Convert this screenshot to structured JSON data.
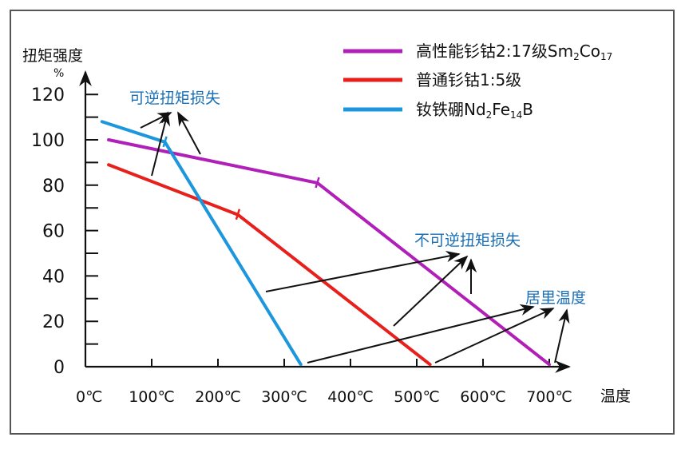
{
  "chart_data": {
    "type": "line",
    "ylabel": "扭矩强度",
    "yunit": "%",
    "xlabel": "温度",
    "ylim": [
      0,
      120
    ],
    "xlim": [
      0,
      700
    ],
    "yticks": [
      "0",
      "20",
      "40",
      "60",
      "80",
      "100",
      "120"
    ],
    "xticks": [
      "0℃",
      "100℃",
      "200℃",
      "300℃",
      "400℃",
      "500℃",
      "600℃",
      "700℃"
    ],
    "series": [
      {
        "name": "高性能钐钴2:17级Sm2Co17",
        "color": "#b01fb8",
        "points": [
          [
            35,
            100
          ],
          [
            350,
            81
          ],
          [
            700,
            1
          ]
        ]
      },
      {
        "name": "普通钐钴1:5级",
        "color": "#e8201c",
        "points": [
          [
            35,
            89
          ],
          [
            230,
            67
          ],
          [
            520,
            1
          ]
        ]
      },
      {
        "name": "钕铁硼Nd2Fe14B",
        "color": "#1c96dc",
        "points": [
          [
            25,
            108
          ],
          [
            120,
            99
          ],
          [
            325,
            1
          ]
        ]
      }
    ],
    "legend": [
      {
        "main": "高性能钐钴2:17级Sm",
        "sub1": "2",
        "mid": "Co",
        "sub2": "17"
      },
      {
        "main": "普通钐钴1:5级",
        "sub1": "",
        "mid": "",
        "sub2": ""
      },
      {
        "main": "钕铁硼Nd",
        "sub1": "2",
        "mid": "Fe",
        "sub2": "14",
        "tail": "B"
      }
    ],
    "annotations": {
      "reversible": "可逆扭矩损失",
      "irreversible": "不可逆扭矩损失",
      "curie": "居里温度"
    },
    "annotation_color": "#1a6fb5"
  }
}
